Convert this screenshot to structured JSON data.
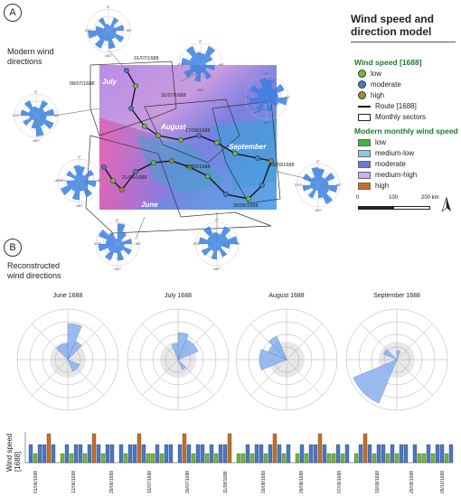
{
  "panel_a": {
    "letter": "A",
    "subtitle": "Modern wind directions"
  },
  "panel_b": {
    "letter": "B",
    "subtitle": "Reconstructed wind directions"
  },
  "legend": {
    "title": "Wind speed and direction model",
    "wind_speed_head": "Wind speed [1688]",
    "wind_items": [
      {
        "label": "low",
        "color": "#6dbb3a"
      },
      {
        "label": "moderate",
        "color": "#4a78c8"
      },
      {
        "label": "high",
        "color": "#a88a2a"
      }
    ],
    "route_label": "Route [1688]",
    "sectors_label": "Monthly sectors",
    "modern_head": "Modern monthly wind speed",
    "modern_items": [
      {
        "label": "low",
        "color": "#3bb53b"
      },
      {
        "label": "medium-low",
        "color": "#8ec9e6"
      },
      {
        "label": "moderate",
        "color": "#6a78d8"
      },
      {
        "label": "medium-high",
        "color": "#c6b2ec"
      },
      {
        "label": "high",
        "color": "#c8701e"
      }
    ],
    "scale": {
      "zero": "0",
      "mid": "100",
      "end": "200 km"
    }
  },
  "map": {
    "months": [
      "July",
      "August",
      "September",
      "June"
    ],
    "dates": [
      "31/07/1688",
      "08/07/1688",
      "31/07/1688",
      "17/08/1688",
      "09/06/1688",
      "21/06/1688",
      "29/09/1688",
      "30/06/1688"
    ]
  },
  "rose_labels": {
    "north": "0°",
    "east": "90°",
    "south": "180°",
    "west": "270°"
  },
  "monthly_roses": [
    {
      "title": "June 1688"
    },
    {
      "title": "July 1688"
    },
    {
      "title": "August 1688"
    },
    {
      "title": "September 1688"
    }
  ],
  "timeline": {
    "ylabel": "Wind speed [1688]",
    "dates": [
      "01/06/1688",
      "12/06/1688",
      "29/06/1688",
      "15/07/1688",
      "30/07/1688",
      "11/08/1688",
      "18/08/1688",
      "28/08/1688",
      "07/09/1688",
      "19/09/1688",
      "29/09/1688",
      "05/10/1688"
    ]
  }
}
